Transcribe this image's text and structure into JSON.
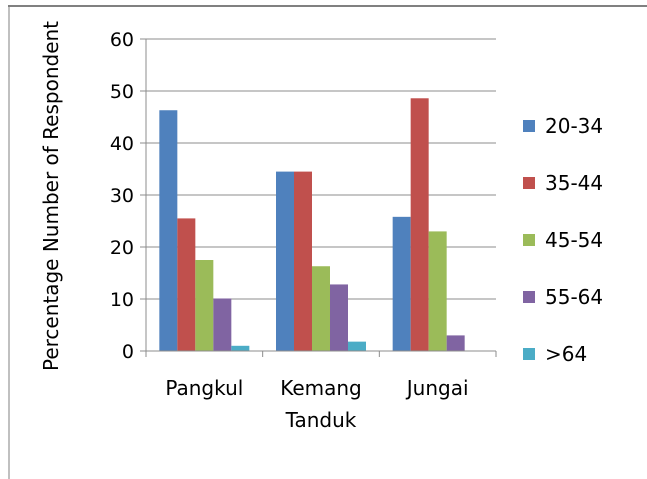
{
  "chart_data": {
    "type": "bar",
    "categories": [
      "Pangkul",
      "Kemang\nTanduk",
      "Jungai"
    ],
    "series": [
      {
        "name": "20-34",
        "values": [
          46.3,
          34.5,
          25.8
        ],
        "color": "#4f81bd"
      },
      {
        "name": "35-44",
        "values": [
          25.5,
          34.5,
          48.6
        ],
        "color": "#c0504d"
      },
      {
        "name": "45-54",
        "values": [
          17.5,
          16.3,
          23.0
        ],
        "color": "#9bbb59"
      },
      {
        "name": "55-64",
        "values": [
          10.1,
          12.8,
          3.0
        ],
        "color": "#8064a2"
      },
      {
        "name": ">64",
        "values": [
          1.0,
          1.8,
          0
        ],
        "color": "#4bacc6"
      }
    ],
    "ylabel": "Percentage Number of Respondent",
    "ylim": [
      0,
      60
    ],
    "yticks": [
      0,
      10,
      20,
      30,
      40,
      50,
      60
    ],
    "grid": true,
    "legend": "right"
  }
}
